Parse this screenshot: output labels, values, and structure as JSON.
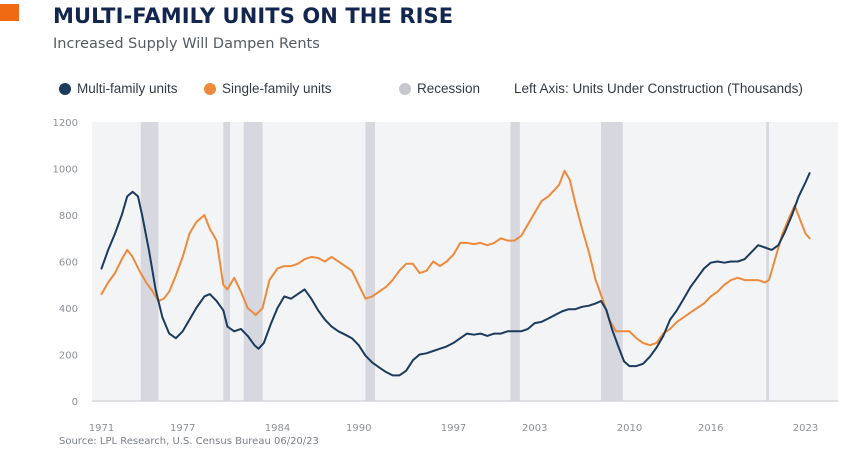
{
  "header": {
    "title": "MULTI-FAMILY UNITS ON THE RISE",
    "subtitle": "Increased Supply Will Dampen Rents"
  },
  "legend": {
    "items": [
      {
        "label": "Multi-family units",
        "color": "#1b3a5c"
      },
      {
        "label": "Single-family units",
        "color": "#ee8a3c"
      },
      {
        "label": "Recession",
        "color": "#c5c7cc"
      }
    ],
    "axis_note": "Left Axis: Units Under Construction (Thousands)"
  },
  "footer": {
    "source": "Source: LPL Research, U.S. Census Bureau  06/20/23"
  },
  "colors": {
    "accent": "#f06a13",
    "title": "#13264f",
    "plot_bg": "#f3f4f6",
    "recession_band": "#d6d7df",
    "multi_family": "#1b3a5c",
    "single_family": "#ee8a3c"
  },
  "chart_data": {
    "type": "line",
    "title": "MULTI-FAMILY UNITS ON THE RISE",
    "subtitle": "Increased Supply Will Dampen Rents",
    "xlabel": "",
    "ylabel": "Units Under Construction (Thousands)",
    "xlim": [
      1970.3,
      2025.4
    ],
    "ylim": [
      0,
      1200
    ],
    "x_ticks": [
      "1971",
      "1977",
      "1984",
      "1990",
      "1997",
      "2003",
      "2010",
      "2016",
      "2023"
    ],
    "x_tick_values": [
      1971,
      1977,
      1984,
      1990,
      1997,
      2003,
      2010,
      2016,
      2023
    ],
    "y_ticks": [
      0,
      200,
      400,
      600,
      800,
      1000,
      1200
    ],
    "grid": false,
    "legend_position": "top",
    "recessions": [
      [
        1973.9,
        1975.2
      ],
      [
        1980.0,
        1980.5
      ],
      [
        1981.5,
        1982.9
      ],
      [
        1990.5,
        1991.2
      ],
      [
        2001.2,
        2001.9
      ],
      [
        2007.9,
        2009.5
      ],
      [
        2020.1,
        2020.3
      ]
    ],
    "series": [
      {
        "name": "Multi-family units",
        "points": [
          [
            1971.0,
            570
          ],
          [
            1971.5,
            650
          ],
          [
            1972.0,
            720
          ],
          [
            1972.5,
            800
          ],
          [
            1972.9,
            880
          ],
          [
            1973.3,
            900
          ],
          [
            1973.7,
            880
          ],
          [
            1974.0,
            800
          ],
          [
            1974.5,
            650
          ],
          [
            1975.0,
            480
          ],
          [
            1975.5,
            360
          ],
          [
            1976.0,
            290
          ],
          [
            1976.5,
            270
          ],
          [
            1977.0,
            300
          ],
          [
            1977.5,
            350
          ],
          [
            1978.0,
            400
          ],
          [
            1978.6,
            450
          ],
          [
            1979.0,
            460
          ],
          [
            1979.5,
            430
          ],
          [
            1980.0,
            390
          ],
          [
            1980.3,
            320
          ],
          [
            1980.8,
            300
          ],
          [
            1981.3,
            310
          ],
          [
            1981.8,
            280
          ],
          [
            1982.3,
            240
          ],
          [
            1982.6,
            225
          ],
          [
            1983.0,
            250
          ],
          [
            1983.5,
            330
          ],
          [
            1984.0,
            400
          ],
          [
            1984.5,
            450
          ],
          [
            1985.0,
            440
          ],
          [
            1985.5,
            460
          ],
          [
            1986.0,
            480
          ],
          [
            1986.5,
            440
          ],
          [
            1987.0,
            390
          ],
          [
            1987.5,
            350
          ],
          [
            1988.0,
            320
          ],
          [
            1988.5,
            300
          ],
          [
            1989.0,
            285
          ],
          [
            1989.5,
            270
          ],
          [
            1990.0,
            240
          ],
          [
            1990.5,
            195
          ],
          [
            1991.0,
            165
          ],
          [
            1991.5,
            145
          ],
          [
            1992.0,
            125
          ],
          [
            1992.5,
            110
          ],
          [
            1993.0,
            110
          ],
          [
            1993.5,
            130
          ],
          [
            1994.0,
            175
          ],
          [
            1994.5,
            200
          ],
          [
            1995.0,
            205
          ],
          [
            1995.5,
            215
          ],
          [
            1996.0,
            225
          ],
          [
            1996.5,
            235
          ],
          [
            1997.0,
            250
          ],
          [
            1997.5,
            270
          ],
          [
            1998.0,
            290
          ],
          [
            1998.5,
            285
          ],
          [
            1999.0,
            290
          ],
          [
            1999.5,
            280
          ],
          [
            2000.0,
            290
          ],
          [
            2000.5,
            290
          ],
          [
            2001.0,
            300
          ],
          [
            2001.5,
            300
          ],
          [
            2002.0,
            300
          ],
          [
            2002.5,
            310
          ],
          [
            2003.0,
            335
          ],
          [
            2003.5,
            340
          ],
          [
            2004.0,
            355
          ],
          [
            2004.5,
            370
          ],
          [
            2005.0,
            385
          ],
          [
            2005.5,
            395
          ],
          [
            2006.0,
            395
          ],
          [
            2006.5,
            405
          ],
          [
            2007.0,
            410
          ],
          [
            2007.5,
            420
          ],
          [
            2007.9,
            430
          ],
          [
            2008.3,
            390
          ],
          [
            2008.7,
            310
          ],
          [
            2009.2,
            230
          ],
          [
            2009.6,
            170
          ],
          [
            2010.0,
            150
          ],
          [
            2010.5,
            150
          ],
          [
            2011.0,
            160
          ],
          [
            2011.5,
            190
          ],
          [
            2012.0,
            230
          ],
          [
            2012.5,
            280
          ],
          [
            2013.0,
            350
          ],
          [
            2013.5,
            390
          ],
          [
            2014.0,
            440
          ],
          [
            2014.5,
            490
          ],
          [
            2015.0,
            530
          ],
          [
            2015.5,
            570
          ],
          [
            2016.0,
            595
          ],
          [
            2016.5,
            600
          ],
          [
            2017.0,
            595
          ],
          [
            2017.5,
            600
          ],
          [
            2018.0,
            600
          ],
          [
            2018.5,
            610
          ],
          [
            2019.0,
            640
          ],
          [
            2019.5,
            670
          ],
          [
            2020.0,
            660
          ],
          [
            2020.5,
            650
          ],
          [
            2021.0,
            670
          ],
          [
            2021.5,
            730
          ],
          [
            2022.0,
            800
          ],
          [
            2022.5,
            880
          ],
          [
            2023.0,
            940
          ],
          [
            2023.3,
            980
          ]
        ]
      },
      {
        "name": "Single-family units",
        "points": [
          [
            1971.0,
            460
          ],
          [
            1971.5,
            510
          ],
          [
            1972.0,
            550
          ],
          [
            1972.5,
            610
          ],
          [
            1972.9,
            650
          ],
          [
            1973.3,
            620
          ],
          [
            1973.8,
            560
          ],
          [
            1974.3,
            510
          ],
          [
            1974.8,
            470
          ],
          [
            1975.2,
            430
          ],
          [
            1975.6,
            440
          ],
          [
            1976.0,
            470
          ],
          [
            1976.5,
            540
          ],
          [
            1977.0,
            620
          ],
          [
            1977.5,
            720
          ],
          [
            1978.0,
            770
          ],
          [
            1978.6,
            800
          ],
          [
            1979.0,
            740
          ],
          [
            1979.5,
            690
          ],
          [
            1980.0,
            500
          ],
          [
            1980.3,
            480
          ],
          [
            1980.8,
            530
          ],
          [
            1981.3,
            470
          ],
          [
            1981.8,
            400
          ],
          [
            1982.4,
            370
          ],
          [
            1982.9,
            400
          ],
          [
            1983.4,
            520
          ],
          [
            1984.0,
            570
          ],
          [
            1984.5,
            580
          ],
          [
            1985.0,
            580
          ],
          [
            1985.5,
            590
          ],
          [
            1986.0,
            610
          ],
          [
            1986.5,
            620
          ],
          [
            1987.0,
            615
          ],
          [
            1987.5,
            600
          ],
          [
            1988.0,
            620
          ],
          [
            1988.5,
            600
          ],
          [
            1989.0,
            580
          ],
          [
            1989.5,
            560
          ],
          [
            1990.0,
            500
          ],
          [
            1990.5,
            440
          ],
          [
            1991.0,
            450
          ],
          [
            1991.5,
            470
          ],
          [
            1992.0,
            490
          ],
          [
            1992.5,
            520
          ],
          [
            1993.0,
            560
          ],
          [
            1993.5,
            590
          ],
          [
            1994.0,
            590
          ],
          [
            1994.5,
            550
          ],
          [
            1995.0,
            560
          ],
          [
            1995.5,
            600
          ],
          [
            1996.0,
            580
          ],
          [
            1996.5,
            600
          ],
          [
            1997.0,
            630
          ],
          [
            1997.5,
            680
          ],
          [
            1998.0,
            680
          ],
          [
            1998.5,
            675
          ],
          [
            1999.0,
            680
          ],
          [
            1999.5,
            670
          ],
          [
            2000.0,
            680
          ],
          [
            2000.5,
            700
          ],
          [
            2001.0,
            690
          ],
          [
            2001.5,
            690
          ],
          [
            2002.0,
            710
          ],
          [
            2002.5,
            760
          ],
          [
            2003.0,
            810
          ],
          [
            2003.5,
            860
          ],
          [
            2004.0,
            880
          ],
          [
            2004.5,
            910
          ],
          [
            2004.8,
            930
          ],
          [
            2005.2,
            990
          ],
          [
            2005.6,
            950
          ],
          [
            2006.0,
            850
          ],
          [
            2006.5,
            740
          ],
          [
            2007.0,
            640
          ],
          [
            2007.5,
            520
          ],
          [
            2008.0,
            440
          ],
          [
            2008.5,
            350
          ],
          [
            2009.0,
            300
          ],
          [
            2009.5,
            300
          ],
          [
            2010.0,
            300
          ],
          [
            2010.5,
            270
          ],
          [
            2011.0,
            250
          ],
          [
            2011.5,
            240
          ],
          [
            2012.0,
            250
          ],
          [
            2012.5,
            290
          ],
          [
            2013.0,
            310
          ],
          [
            2013.5,
            340
          ],
          [
            2014.0,
            360
          ],
          [
            2014.5,
            380
          ],
          [
            2015.0,
            400
          ],
          [
            2015.5,
            420
          ],
          [
            2016.0,
            450
          ],
          [
            2016.5,
            470
          ],
          [
            2017.0,
            500
          ],
          [
            2017.5,
            520
          ],
          [
            2018.0,
            530
          ],
          [
            2018.5,
            520
          ],
          [
            2019.0,
            520
          ],
          [
            2019.5,
            520
          ],
          [
            2020.0,
            510
          ],
          [
            2020.3,
            520
          ],
          [
            2020.8,
            620
          ],
          [
            2021.3,
            720
          ],
          [
            2021.8,
            790
          ],
          [
            2022.2,
            840
          ],
          [
            2022.6,
            780
          ],
          [
            2023.0,
            720
          ],
          [
            2023.3,
            700
          ]
        ]
      }
    ]
  }
}
